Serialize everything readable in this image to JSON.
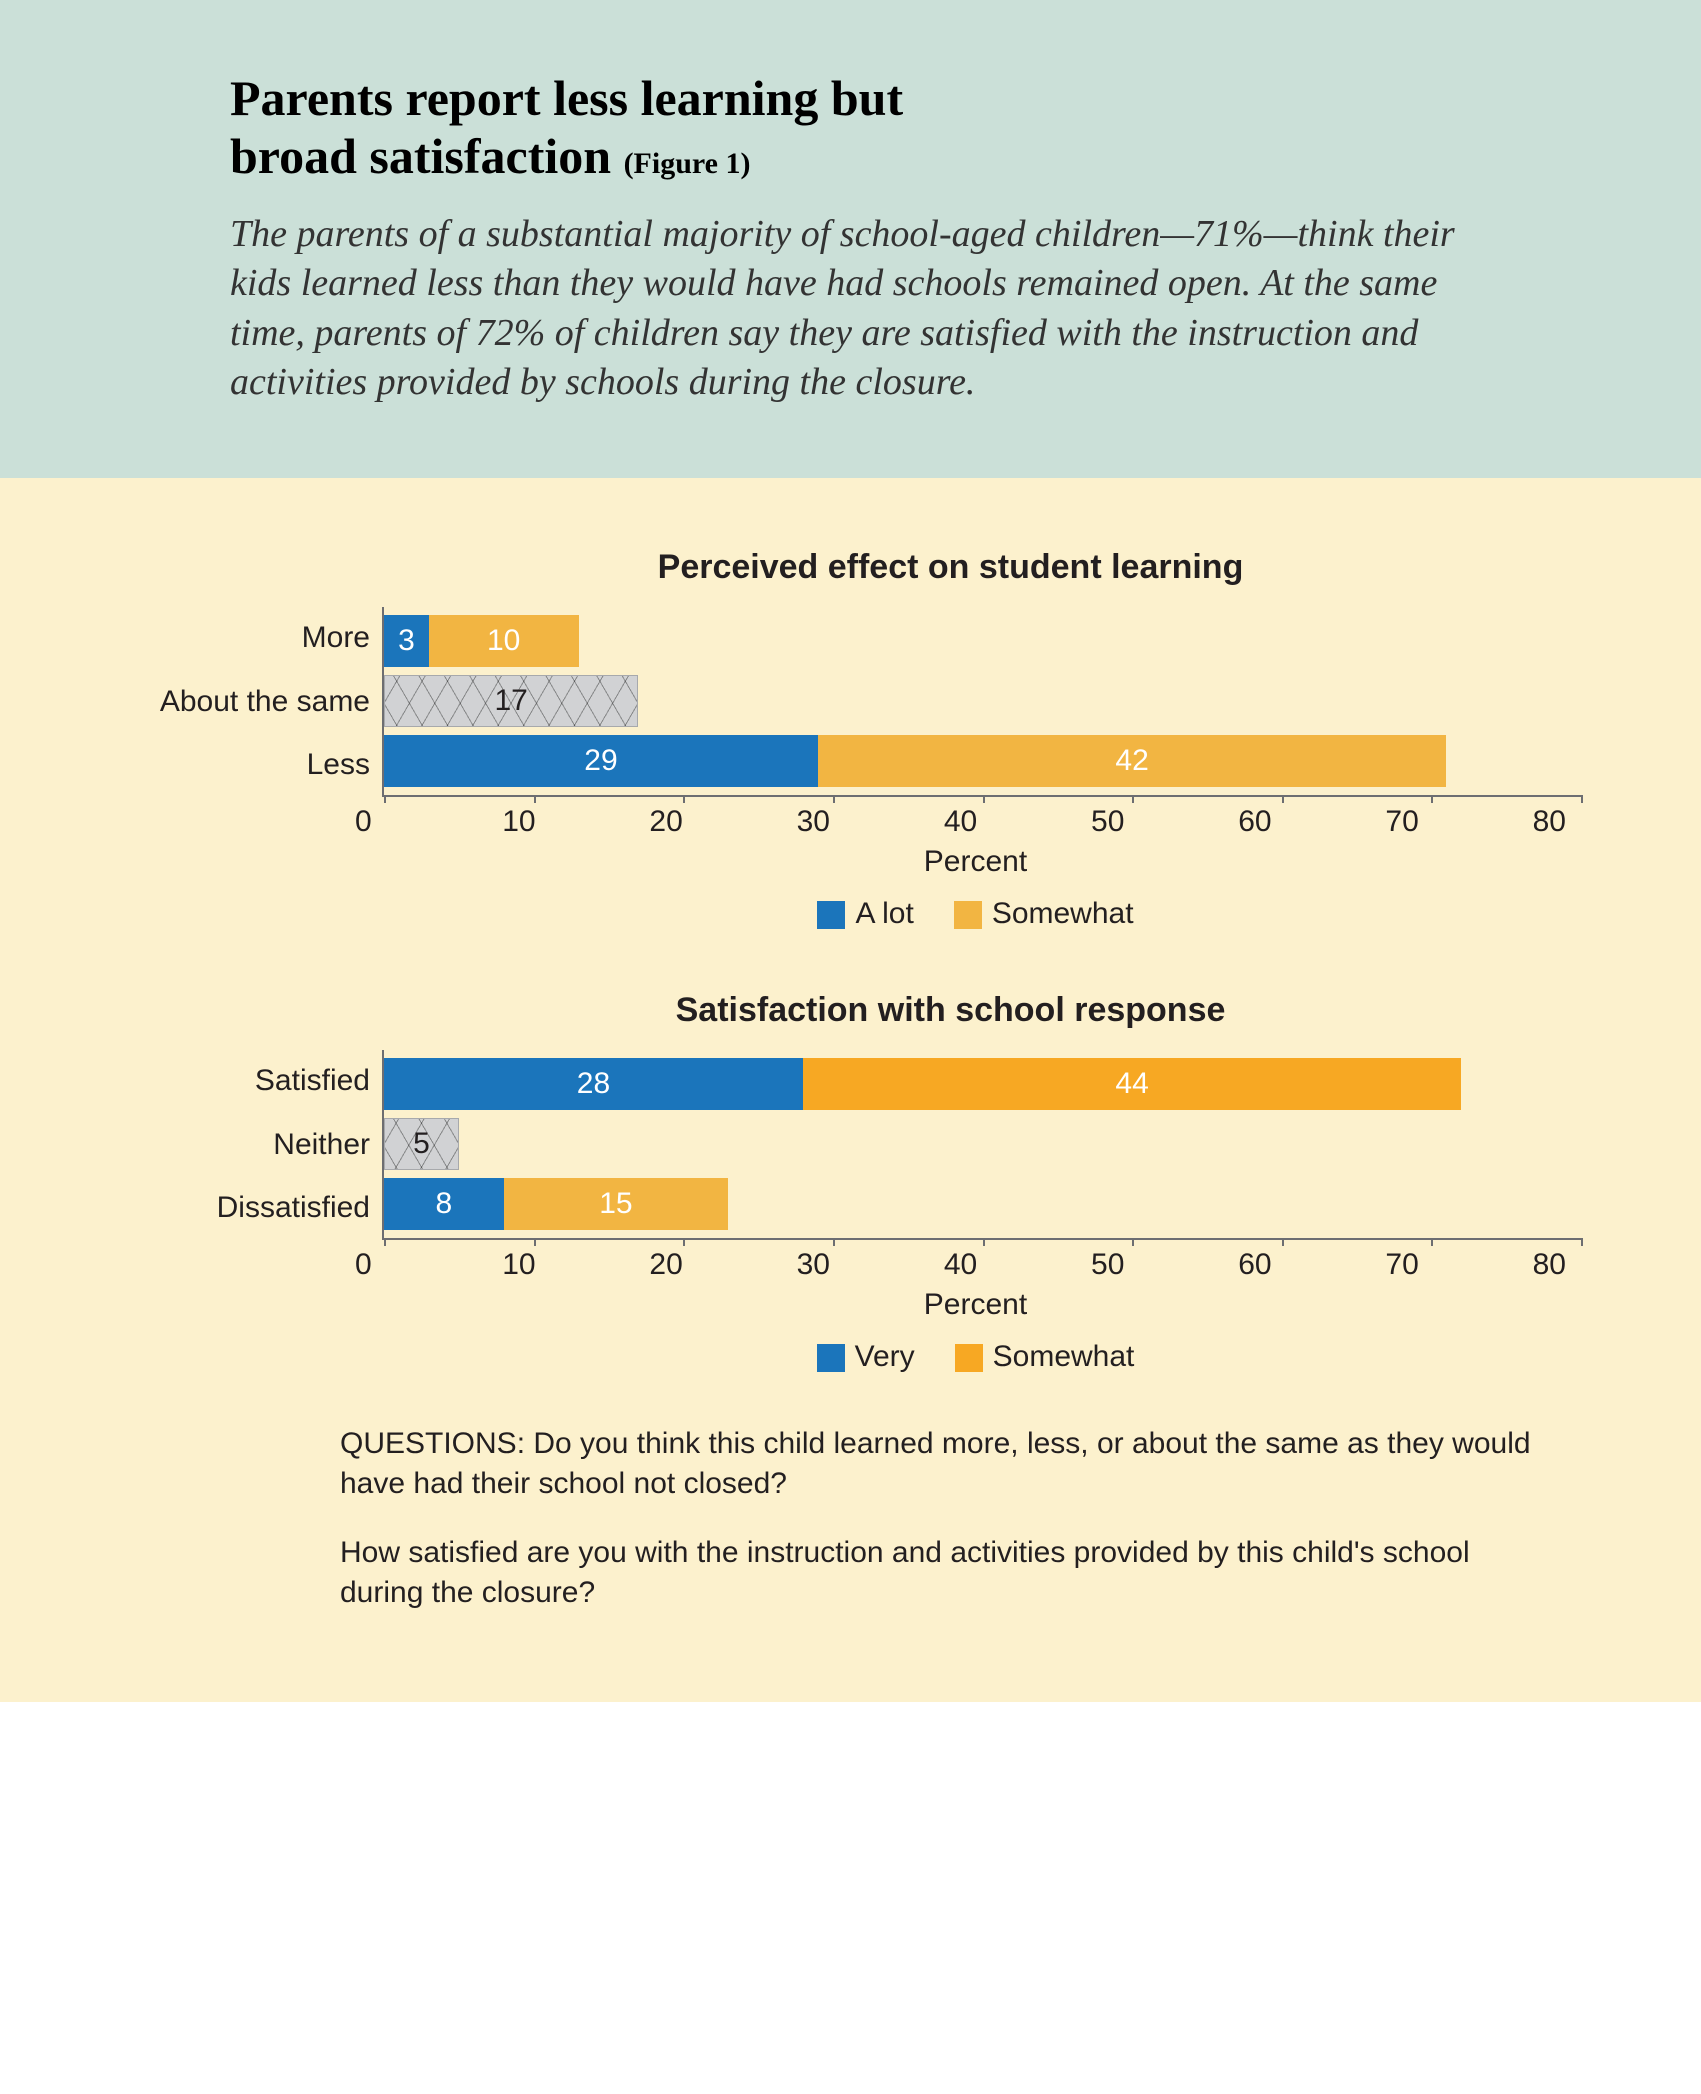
{
  "header": {
    "title_line1": "Parents report less learning but",
    "title_line2": "broad satisfaction",
    "figure_label": "(Figure 1)",
    "subtitle": "The parents of a substantial majority of school-aged children—71%—think their kids learned less than they would have had schools remained open. At the same time, parents of 72% of children say they are satisfied with the instruction and activities provided by schools during the closure."
  },
  "colors": {
    "header_bg": "#cbe0d8",
    "chart_bg": "#fcf1cd",
    "series_primary": "#1b75bb",
    "series_secondary": "#f2b542",
    "series_secondary2": "#f7a823",
    "neutral_fill": "#d1d2d4",
    "axis": "#6d6e71",
    "text": "#231f20"
  },
  "chart1": {
    "type": "stacked_bar_horizontal",
    "title": "Perceived effect on student learning",
    "x_label": "Percent",
    "xlim": [
      0,
      80
    ],
    "xtick_step": 10,
    "xticks": [
      "0",
      "10",
      "20",
      "30",
      "40",
      "50",
      "60",
      "70",
      "80"
    ],
    "legend": [
      "A lot",
      "Somewhat"
    ],
    "categories": [
      "More",
      "About the same",
      "Less"
    ],
    "rows": [
      {
        "label": "More",
        "segments": [
          {
            "value": 3,
            "display": "3",
            "color": "#1b75bb"
          },
          {
            "value": 10,
            "display": "10",
            "color": "#f2b542"
          }
        ]
      },
      {
        "label": "About the same",
        "segments": [
          {
            "value": 17,
            "display": "17",
            "hatched": true
          }
        ]
      },
      {
        "label": "Less",
        "segments": [
          {
            "value": 29,
            "display": "29",
            "color": "#1b75bb"
          },
          {
            "value": 42,
            "display": "42",
            "color": "#f2b542"
          }
        ]
      }
    ]
  },
  "chart2": {
    "type": "stacked_bar_horizontal",
    "title": "Satisfaction with school response",
    "x_label": "Percent",
    "xlim": [
      0,
      80
    ],
    "xtick_step": 10,
    "xticks": [
      "0",
      "10",
      "20",
      "30",
      "40",
      "50",
      "60",
      "70",
      "80"
    ],
    "legend": [
      "Very",
      "Somewhat"
    ],
    "categories": [
      "Satisfied",
      "Neither",
      "Dissatisfied"
    ],
    "rows": [
      {
        "label": "Satisfied",
        "segments": [
          {
            "value": 28,
            "display": "28",
            "color": "#1b75bb"
          },
          {
            "value": 44,
            "display": "44",
            "color": "#f7a823"
          }
        ]
      },
      {
        "label": "Neither",
        "segments": [
          {
            "value": 5,
            "display": "5",
            "hatched": true
          }
        ]
      },
      {
        "label": "Dissatisfied",
        "segments": [
          {
            "value": 8,
            "display": "8",
            "color": "#1b75bb"
          },
          {
            "value": 15,
            "display": "15",
            "color": "#f2b542"
          }
        ]
      }
    ]
  },
  "questions": {
    "heading": "QUESTIONS:",
    "q1": "Do you think this child learned more, less, or about the same as they would have had their school not closed?",
    "q2": "How satisfied are you with the instruction and activities provided by this child's school during the closure?"
  }
}
